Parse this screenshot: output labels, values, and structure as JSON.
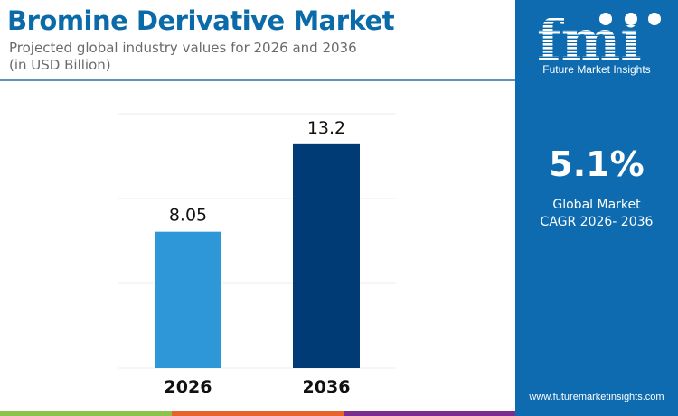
{
  "header": {
    "title": "Bromine Derivative Market",
    "subtitle_line1": "Projected global industry values for 2026 and 2036",
    "subtitle_line2": "(in USD Billion)"
  },
  "sidebar": {
    "logo_text": "fmi",
    "brand": "Future Market Insights",
    "cagr_value": "5.1%",
    "cagr_label_line1": "Global Market",
    "cagr_label_line2": "CAGR 2026- 2036",
    "url": "www.futuremarketinsights.com"
  },
  "colors": {
    "bar_2026": "#2e97d8",
    "bar_2036": "#003b75",
    "sidebar": "#0e6bb0",
    "title": "#0b6aa8",
    "strip": [
      "#8bc34a",
      "#e8632b",
      "#7b2d8e"
    ]
  },
  "chart_data": {
    "type": "bar",
    "categories": [
      "2026",
      "2036"
    ],
    "values": [
      8.05,
      13.2
    ],
    "data_labels": [
      "8.05",
      "13.2"
    ],
    "ylim": [
      0,
      15
    ],
    "grid": true,
    "xlabel": "",
    "ylabel": ""
  }
}
